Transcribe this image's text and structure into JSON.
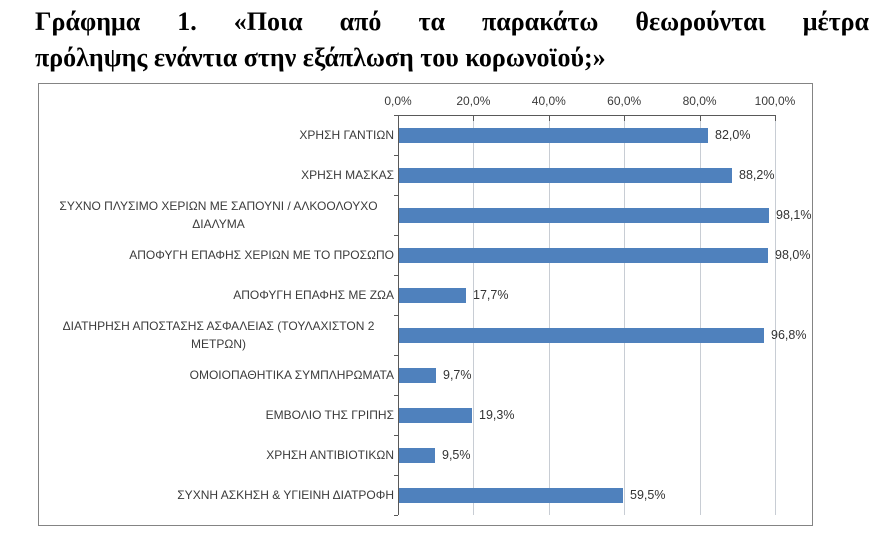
{
  "title": {
    "line1": "Γράφημα 1. «Ποια από τα παρακάτω θεωρούνται μέτρα",
    "line2": "πρόληψης ενάντια στην εξάπλωση του κορωνοϊού;»"
  },
  "chart_data": {
    "type": "bar",
    "orientation": "horizontal",
    "categories": [
      "ΧΡΗΣΗ ΓΑΝΤΙΩΝ",
      "ΧΡΗΣΗ ΜΑΣΚΑΣ",
      "ΣΥΧΝΟ ΠΛΥΣΙΜΟ ΧΕΡΙΩΝ ΜΕ ΣΑΠΟΥΝΙ / ΑΛΚΟΟΛΟΥΧΟ ΔΙΑΛΥΜΑ",
      "ΑΠΟΦΥΓΗ ΕΠΑΦΗΣ ΧΕΡΙΩΝ ΜΕ ΤΟ ΠΡΟΣΩΠΟ",
      "ΑΠΟΦΥΓΗ ΕΠΑΦΗΣ ΜΕ ΖΩΑ",
      "ΔΙΑΤΗΡΗΣΗ ΑΠΟΣΤΑΣΗΣ ΑΣΦΑΛΕΙΑΣ (ΤΟΥΛΑΧΙΣΤΟΝ 2 ΜΕΤΡΩΝ)",
      "ΟΜΟΙΟΠΑΘΗΤΙΚΑ ΣΥΜΠΛΗΡΩΜΑΤΑ",
      "ΕΜΒΟΛΙΟ ΤΗΣ ΓΡΙΠΗΣ",
      "ΧΡΗΣΗ ΑΝΤΙΒΙΟΤΙΚΩΝ",
      "ΣΥΧΝΗ ΑΣΚΗΣΗ & ΥΓΙΕΙΝΗ ΔΙΑΤΡΟΦΗ"
    ],
    "values": [
      82.0,
      88.2,
      98.1,
      98.0,
      17.7,
      96.8,
      9.7,
      19.3,
      9.5,
      59.5
    ],
    "value_labels": [
      "82,0%",
      "88,2%",
      "98,1%",
      "98,0%",
      "17,7%",
      "96,8%",
      "9,7%",
      "19,3%",
      "9,5%",
      "59,5%"
    ],
    "x_axis": {
      "position": "top",
      "min": 0,
      "max": 100,
      "tick_labels": [
        "0,0%",
        "20,0%",
        "40,0%",
        "60,0%",
        "80,0%",
        "100,0%"
      ]
    },
    "grid": true,
    "legend": false,
    "bar_color": "#4f81bd",
    "gridline_color": "#c8cdd4",
    "axis_color": "#595959",
    "label_color": "#3b3b3b",
    "border_color": "#848484"
  }
}
